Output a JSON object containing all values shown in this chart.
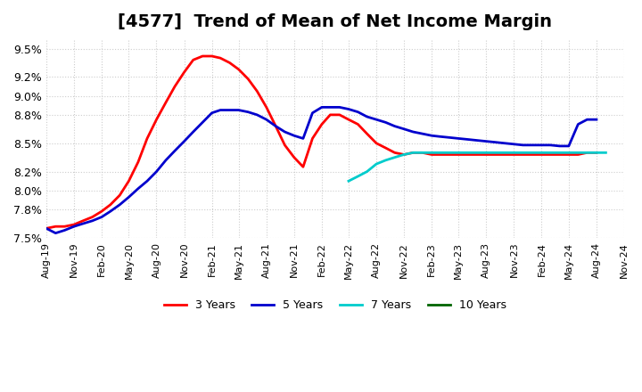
{
  "title": "[4577]  Trend of Mean of Net Income Margin",
  "title_fontsize": 14,
  "background_color": "#ffffff",
  "plot_bg_color": "#ffffff",
  "grid_color": "#cccccc",
  "ylim": [
    0.075,
    0.096
  ],
  "yticks": [
    0.075,
    0.078,
    0.08,
    0.082,
    0.085,
    0.088,
    0.09,
    0.092,
    0.095
  ],
  "ytick_labels": [
    "7.5%",
    "7.8%",
    "8.0%",
    "8.2%",
    "8.5%",
    "8.8%",
    "9.0%",
    "9.2%",
    "9.5%"
  ],
  "series": {
    "3 Years": {
      "color": "#ff0000",
      "linewidth": 2.0,
      "values_approx": [
        0.076,
        0.0762,
        0.0762,
        0.0764,
        0.0768,
        0.0772,
        0.0778,
        0.0785,
        0.0795,
        0.081,
        0.083,
        0.0855,
        0.0875,
        0.0893,
        0.091,
        0.0925,
        0.0938,
        0.0942,
        0.0942,
        0.094,
        0.0935,
        0.0928,
        0.0918,
        0.0905,
        0.0888,
        0.0868,
        0.0848,
        0.0835,
        0.0825,
        0.0855,
        0.087,
        0.088,
        0.088,
        0.0875,
        0.087,
        0.086,
        0.085,
        0.0845,
        0.084,
        0.0838,
        0.084,
        0.084,
        0.0838,
        0.0838,
        0.0838,
        0.0838,
        0.0838,
        0.0838,
        0.0838,
        0.0838,
        0.0838,
        0.0838,
        0.0838,
        0.0838,
        0.0838,
        0.0838,
        0.0838,
        0.0838,
        0.0838,
        0.084,
        0.084
      ]
    },
    "5 Years": {
      "color": "#0000cd",
      "linewidth": 2.0,
      "values_approx": [
        0.076,
        0.0755,
        0.0758,
        0.0762,
        0.0765,
        0.0768,
        0.0772,
        0.0778,
        0.0785,
        0.0793,
        0.0802,
        0.081,
        0.082,
        0.0832,
        0.0842,
        0.0852,
        0.0862,
        0.0872,
        0.0882,
        0.0885,
        0.0885,
        0.0885,
        0.0883,
        0.088,
        0.0875,
        0.0868,
        0.0862,
        0.0858,
        0.0855,
        0.0882,
        0.0888,
        0.0888,
        0.0888,
        0.0886,
        0.0883,
        0.0878,
        0.0875,
        0.0872,
        0.0868,
        0.0865,
        0.0862,
        0.086,
        0.0858,
        0.0857,
        0.0856,
        0.0855,
        0.0854,
        0.0853,
        0.0852,
        0.0851,
        0.085,
        0.0849,
        0.0848,
        0.0848,
        0.0848,
        0.0848,
        0.0847,
        0.0847,
        0.087,
        0.0875,
        0.0875
      ]
    },
    "7 Years": {
      "color": "#00cccc",
      "linewidth": 2.0,
      "values_approx": [
        0.081,
        0.0815,
        0.082,
        0.0828,
        0.0832,
        0.0835,
        0.0838,
        0.084,
        0.084,
        0.084,
        0.084,
        0.084,
        0.084,
        0.084,
        0.084,
        0.084,
        0.084,
        0.084,
        0.084,
        0.084,
        0.084,
        0.084,
        0.084,
        0.084,
        0.084,
        0.084,
        0.084,
        0.084,
        0.084
      ]
    },
    "10 Years": {
      "color": "#006400",
      "linewidth": 2.0,
      "start_month": null,
      "end_month": null,
      "values_approx": []
    }
  },
  "xtick_months": [
    "Aug-19",
    "Nov-19",
    "Feb-20",
    "May-20",
    "Aug-20",
    "Nov-20",
    "Feb-21",
    "May-21",
    "Aug-21",
    "Nov-21",
    "Feb-22",
    "May-22",
    "Aug-22",
    "Nov-22",
    "Feb-23",
    "May-23",
    "Aug-23",
    "Nov-23",
    "Feb-24",
    "May-24",
    "Aug-24",
    "Nov-24"
  ],
  "legend_labels": [
    "3 Years",
    "5 Years",
    "7 Years",
    "10 Years"
  ],
  "legend_colors": [
    "#ff0000",
    "#0000cd",
    "#00cccc",
    "#006400"
  ]
}
